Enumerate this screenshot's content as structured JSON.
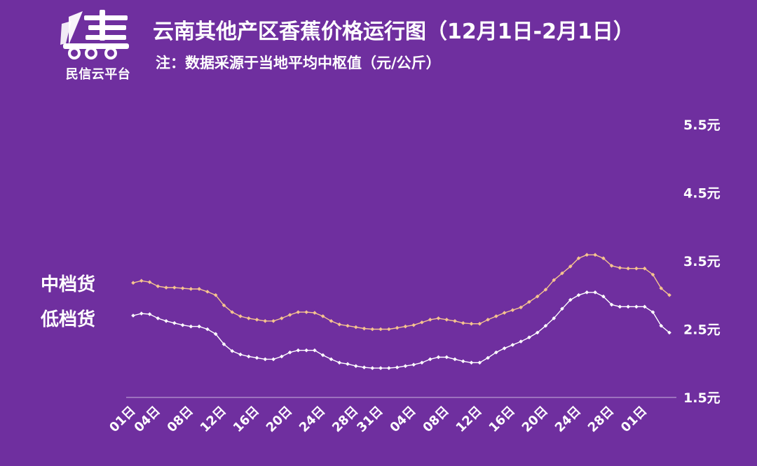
{
  "brand": {
    "name": "民信云平台",
    "colors": {
      "background": "#6f2f9f",
      "mid_series": "#f6c48e",
      "low_series": "#ffffff"
    }
  },
  "title": "云南其他产区香蕉价格运行图（12月1日-2月1日）",
  "subtitle": "注：数据采源于当地平均中枢值（元/公斤）",
  "chart_data": {
    "type": "line",
    "xlabel": "",
    "ylabel": "",
    "ylim": [
      1.5,
      5.5
    ],
    "yticks": [
      "1.5元",
      "2.5元",
      "3.5元",
      "4.5元",
      "5.5元"
    ],
    "ytick_values": [
      1.5,
      2.5,
      3.5,
      4.5,
      5.5
    ],
    "xticks": [
      "01日",
      "04日",
      "08日",
      "12日",
      "16日",
      "20日",
      "24日",
      "28日",
      "31日",
      "04日",
      "08日",
      "12日",
      "16日",
      "20日",
      "24日",
      "28日",
      "01日"
    ],
    "xtick_index": [
      0,
      3,
      7,
      11,
      15,
      19,
      23,
      27,
      30,
      34,
      38,
      42,
      46,
      50,
      54,
      58,
      62
    ],
    "grid": false,
    "series": [
      {
        "name": "中档货",
        "values": [
          3.18,
          3.21,
          3.19,
          3.13,
          3.11,
          3.11,
          3.1,
          3.09,
          3.09,
          3.05,
          3.0,
          2.85,
          2.75,
          2.69,
          2.66,
          2.64,
          2.62,
          2.62,
          2.66,
          2.71,
          2.75,
          2.75,
          2.74,
          2.69,
          2.62,
          2.57,
          2.55,
          2.53,
          2.51,
          2.5,
          2.5,
          2.5,
          2.52,
          2.54,
          2.56,
          2.6,
          2.64,
          2.66,
          2.64,
          2.62,
          2.59,
          2.58,
          2.58,
          2.64,
          2.69,
          2.74,
          2.78,
          2.82,
          2.9,
          2.98,
          3.08,
          3.22,
          3.32,
          3.42,
          3.54,
          3.59,
          3.59,
          3.54,
          3.43,
          3.4,
          3.39,
          3.39,
          3.39,
          3.3,
          3.1,
          3.0
        ]
      },
      {
        "name": "低档货",
        "values": [
          2.7,
          2.73,
          2.72,
          2.66,
          2.62,
          2.59,
          2.56,
          2.54,
          2.54,
          2.5,
          2.43,
          2.28,
          2.18,
          2.13,
          2.1,
          2.08,
          2.06,
          2.06,
          2.1,
          2.16,
          2.19,
          2.19,
          2.19,
          2.12,
          2.06,
          2.01,
          1.99,
          1.96,
          1.94,
          1.93,
          1.93,
          1.93,
          1.94,
          1.96,
          1.98,
          2.01,
          2.06,
          2.09,
          2.09,
          2.06,
          2.03,
          2.01,
          2.01,
          2.08,
          2.16,
          2.22,
          2.27,
          2.32,
          2.38,
          2.45,
          2.55,
          2.66,
          2.8,
          2.93,
          3.0,
          3.04,
          3.04,
          2.98,
          2.86,
          2.83,
          2.83,
          2.83,
          2.83,
          2.75,
          2.55,
          2.45
        ]
      }
    ]
  }
}
